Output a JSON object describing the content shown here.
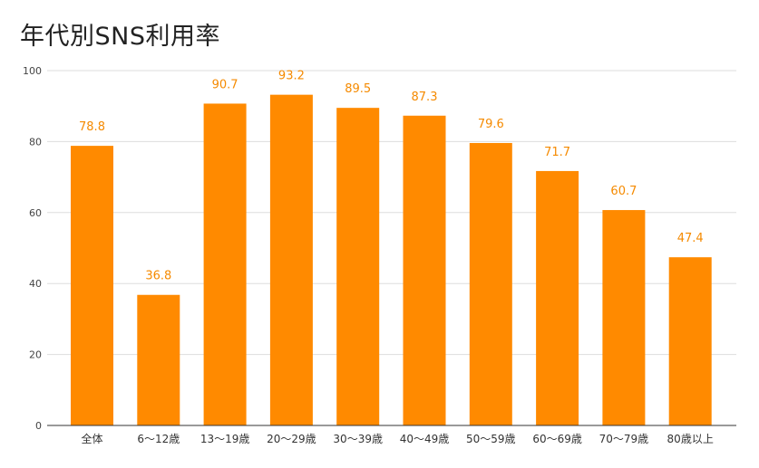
{
  "chart_data": {
    "type": "bar",
    "title": "年代別SNS利用率",
    "categories": [
      "全体",
      "6〜12歳",
      "13〜19歳",
      "20〜29歳",
      "30〜39歳",
      "40〜49歳",
      "50〜59歳",
      "60〜69歳",
      "70〜79歳",
      "80歳以上"
    ],
    "series": [
      {
        "values": [
          78.8,
          36.8,
          90.7,
          93.2,
          89.5,
          87.3,
          79.6,
          71.7,
          60.7,
          47.4
        ]
      }
    ],
    "data_labels": [
      "78.8",
      "36.8",
      "90.7",
      "93.2",
      "89.5",
      "87.3",
      "79.6",
      "71.7",
      "60.7",
      "47.4"
    ],
    "yticks": [
      "0",
      "20",
      "40",
      "60",
      "80",
      "100"
    ],
    "ylim": [
      0,
      100
    ],
    "grid": true,
    "legend": "none",
    "bar_color": "#ff8a00",
    "label_color": "#f58a00",
    "grid_color": "#dddddd",
    "axis_color": "#333333"
  }
}
